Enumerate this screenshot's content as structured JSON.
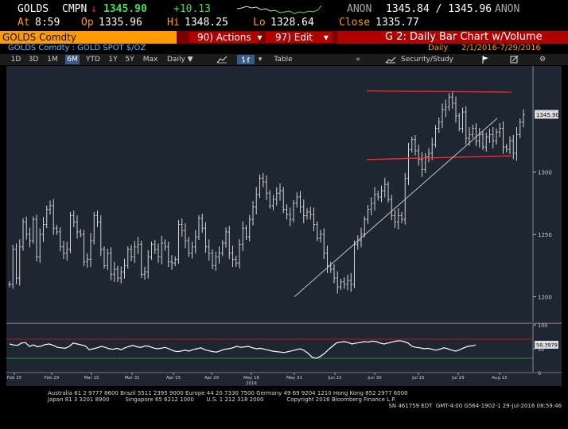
{
  "header": {
    "ticker": "GOLDS",
    "cmpn_label": "CMPN",
    "arrow": "↓",
    "last": "1345.90",
    "change": "+10.13",
    "source": "ANON",
    "bid_ask": "1345.84 / 1345.96",
    "source2": "ANON",
    "time_label": "At",
    "time": "8:59",
    "open_label": "Op",
    "open": "1335.96",
    "high_label": "Hi",
    "high": "1348.25",
    "low_label": "Lo",
    "low": "1328.64",
    "close_label": "Close",
    "close": "1335.77"
  },
  "toolbar": {
    "security": "GOLDS Comdty",
    "actions_label": "90) Actions",
    "edit_label": "97) Edit",
    "chart_title": "G 2: Daily Bar Chart w/Volume"
  },
  "subheader": {
    "security_name": "GOLDS Comdty : GOLD SPOT $/OZ",
    "period_label": "Daily",
    "date_range": "2/1/2016-7/29/2016"
  },
  "range_buttons": [
    "1D",
    "3D",
    "1M",
    "6M",
    "YTD",
    "1Y",
    "5Y",
    "Max"
  ],
  "selected_range": "6M",
  "controls": {
    "frequency": "Daily",
    "table_label": "Table",
    "security_study_label": "Security/Study"
  },
  "chart_data": [
    {
      "type": "bar",
      "subtype": "ohlc",
      "title": "",
      "ylim": [
        1180,
        1385
      ],
      "yticks": [
        1200,
        1250,
        1300
      ],
      "last_price_label": "1345.90",
      "x_ticks": [
        "Feb 15",
        "Feb 29",
        "Mar 15",
        "Mar 31",
        "Apr 15",
        "Apr 29",
        "May 16",
        "May 31",
        "Jun 15",
        "Jun 30",
        "Jul 15",
        "Jul 29",
        "Aug 15"
      ],
      "x_subtick": "2016",
      "closes": [
        1210,
        1238,
        1215,
        1240,
        1260,
        1250,
        1245,
        1262,
        1232,
        1250,
        1258,
        1270,
        1273,
        1255,
        1252,
        1240,
        1235,
        1238,
        1265,
        1260,
        1252,
        1250,
        1228,
        1230,
        1245,
        1265,
        1260,
        1238,
        1225,
        1235,
        1218,
        1222,
        1215,
        1220,
        1225,
        1238,
        1232,
        1240,
        1242,
        1218,
        1220,
        1232,
        1242,
        1238,
        1232,
        1243,
        1240,
        1228,
        1227,
        1230,
        1258,
        1253,
        1245,
        1235,
        1240,
        1248,
        1263,
        1255,
        1240,
        1235,
        1225,
        1232,
        1235,
        1243,
        1252,
        1235,
        1230,
        1227,
        1242,
        1255,
        1248,
        1262,
        1272,
        1282,
        1295,
        1292,
        1283,
        1273,
        1278,
        1283,
        1285,
        1270,
        1266,
        1262,
        1275,
        1280,
        1272,
        1265,
        1268,
        1266,
        1258,
        1247,
        1250,
        1235,
        1225,
        1222,
        1215,
        1208,
        1212,
        1210,
        1213,
        1210,
        1242,
        1245,
        1250,
        1262,
        1270,
        1275,
        1282,
        1280,
        1285,
        1290,
        1278,
        1265,
        1260,
        1265,
        1262,
        1295,
        1318,
        1326,
        1317,
        1310,
        1302,
        1312,
        1315,
        1322,
        1335,
        1340,
        1350,
        1352,
        1360,
        1355,
        1345,
        1335,
        1348,
        1327,
        1330,
        1335,
        1325,
        1330,
        1320,
        1328,
        1330,
        1325,
        1332,
        1335,
        1320,
        1318,
        1325,
        1315,
        1330,
        1340,
        1346
      ],
      "trendlines": [
        {
          "name": "resistance",
          "color": "#ff2a2a",
          "from": [
            "Jun 27",
            1365
          ],
          "to": [
            "Aug 20",
            1364
          ]
        },
        {
          "name": "support",
          "color": "#ff2a2a",
          "from": [
            "Jun 27",
            1310
          ],
          "to": [
            "Aug 20",
            1313
          ]
        },
        {
          "name": "uptrend",
          "color": "#c8c8c8",
          "from": [
            "May 31",
            1200
          ],
          "to": [
            "Aug 14",
            1343
          ]
        }
      ]
    },
    {
      "type": "line",
      "name": "RSI",
      "ylim": [
        0,
        100
      ],
      "yticks": [
        0,
        50,
        100
      ],
      "last_value_label": "58.3979",
      "overbought": 70,
      "oversold": 30,
      "values": [
        60,
        58,
        57,
        62,
        63,
        55,
        58,
        54,
        56,
        59,
        60,
        57,
        53,
        52,
        51,
        55,
        62,
        60,
        58,
        56,
        48,
        50,
        52,
        55,
        53,
        50,
        49,
        51,
        48,
        52,
        55,
        57,
        54,
        53,
        56,
        55,
        52,
        50,
        51,
        53,
        50,
        46,
        44,
        45,
        47,
        45,
        48,
        50,
        52,
        48,
        46,
        44,
        43,
        46,
        49,
        50,
        52,
        55,
        53,
        54,
        55,
        52,
        50,
        51,
        49,
        47,
        45,
        44,
        43,
        42,
        44,
        46,
        48,
        50,
        46,
        40,
        32,
        30,
        34,
        40,
        48,
        55,
        62,
        64,
        65,
        63,
        60,
        62,
        63,
        65,
        64,
        66,
        65,
        62,
        60,
        62,
        64,
        66,
        67,
        65,
        62,
        55,
        53,
        52,
        50,
        51,
        49,
        47,
        49,
        52,
        50,
        47,
        45,
        48,
        52,
        55,
        56,
        58
      ]
    }
  ],
  "footer": {
    "line1": "Australia 61 2 9777 8600 Brazil 5511 2395 9000 Europe 44 20 7330 7500 Germany 49 69 9204 1210 Hong Kong 852 2977 6000",
    "line2": "Japan 81 3 3201 8900         Singapore 65 6212 1000       U.S. 1 212 318 2000             Copyright 2016 Bloomberg Finance L.P.",
    "line3": "SN 461759 EDT  GMT-4:00 G564-1902-1 29-Jul-2016 08:59:46"
  }
}
